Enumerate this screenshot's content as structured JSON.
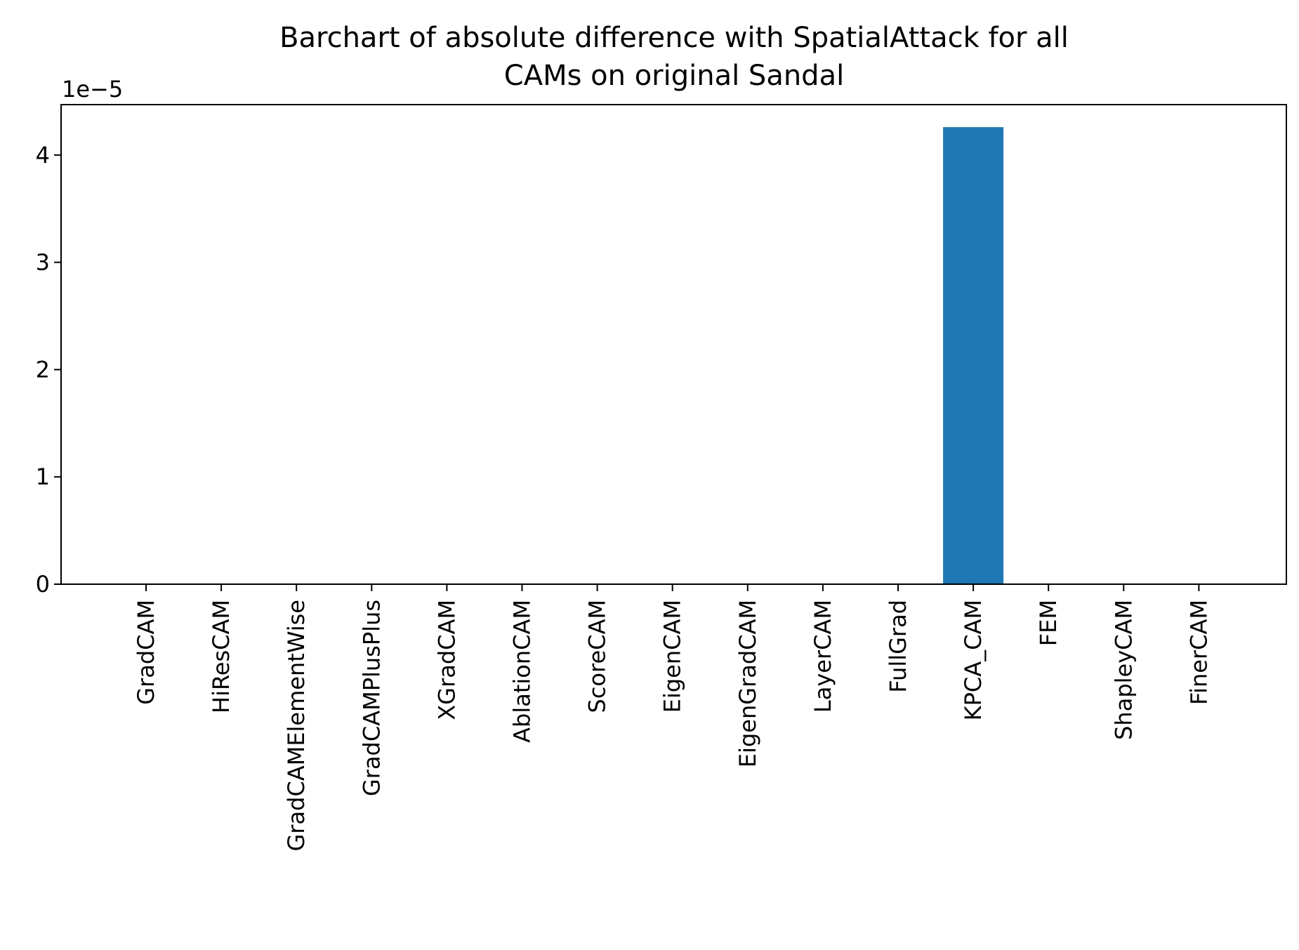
{
  "chart_data": {
    "type": "bar",
    "title_lines": [
      "Barchart of absolute difference with SpatialAttack for all",
      "CAMs on original Sandal"
    ],
    "xlabel": "",
    "ylabel": "",
    "y_offset_label": "1e−5",
    "categories": [
      "GradCAM",
      "HiResCAM",
      "GradCAMElementWise",
      "GradCAMPlusPlus",
      "XGradCAM",
      "AblationCAM",
      "ScoreCAM",
      "EigenCAM",
      "EigenGradCAM",
      "LayerCAM",
      "FullGrad",
      "KPCA_CAM",
      "FEM",
      "ShapleyCAM",
      "FinerCAM"
    ],
    "values": [
      0,
      0,
      0,
      0,
      0,
      0,
      0,
      0,
      0,
      0,
      0,
      4.26,
      0,
      0,
      0
    ],
    "value_scale": "1e-5",
    "yticks": [
      0,
      1,
      2,
      3,
      4
    ],
    "ylim": [
      0,
      4.47
    ],
    "bar_color": "#1f77b4",
    "grid": false,
    "legend": "none"
  }
}
